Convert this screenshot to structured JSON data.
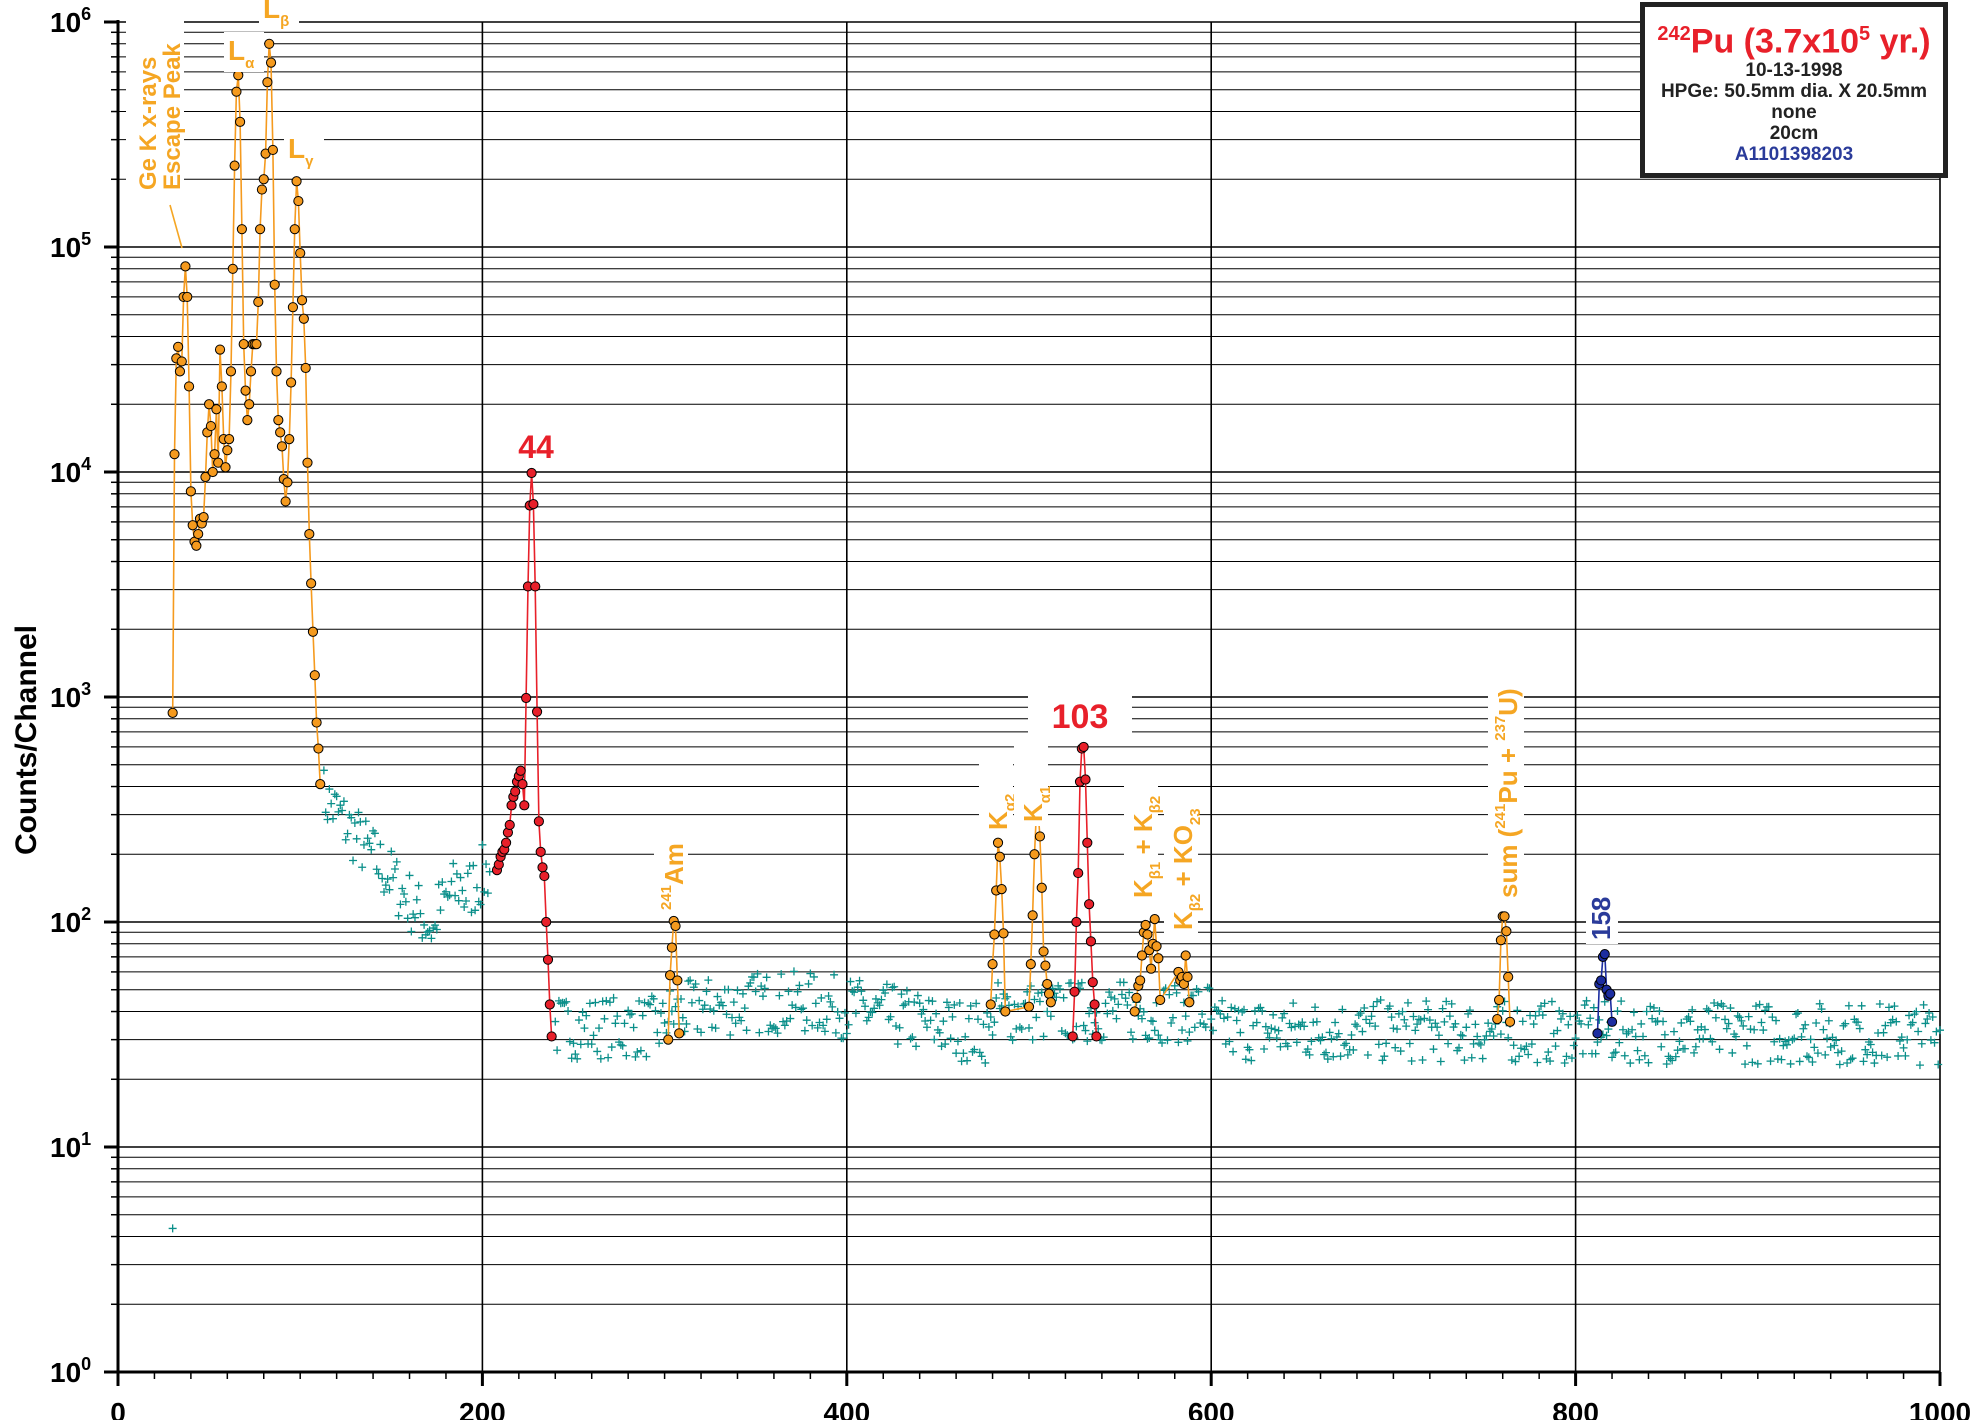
{
  "info_box": {
    "title_sup": "242",
    "title_element": "Pu",
    "title_rest_pre": " (3.7x10",
    "title_exp": "5",
    "title_rest_post": " yr.)",
    "date": "10-13-1998",
    "detector": "HPGe: 50.5mm dia. X 20.5mm",
    "absorber": "none",
    "distance": "20cm",
    "spectrum_id": "A1101398203"
  },
  "chart_data": {
    "type": "scatter",
    "title": "",
    "xlabel": "",
    "ylabel": "Counts/Channel",
    "xlim": [
      0,
      1000
    ],
    "ylim": [
      1,
      1000000
    ],
    "yscale": "log",
    "grid": true,
    "x_ticks": [
      "0",
      "200",
      "400",
      "600",
      "800",
      "1000"
    ],
    "y_ticks": [
      {
        "base": "10",
        "exp": "0"
      },
      {
        "base": "10",
        "exp": "1"
      },
      {
        "base": "10",
        "exp": "2"
      },
      {
        "base": "10",
        "exp": "3"
      },
      {
        "base": "10",
        "exp": "4"
      },
      {
        "base": "10",
        "exp": "5"
      },
      {
        "base": "10",
        "exp": "6"
      }
    ],
    "colors": {
      "background": "#0a8f8a",
      "xray": "#f59a1e",
      "peak": "#e8202a",
      "peak_dark": "#1c2da0",
      "text_xray": "#f5a623",
      "text_peak": "#e8202a",
      "text_blue": "#2a3b9a"
    },
    "series": [
      {
        "role": "xray-lines",
        "color": "#f59a1e",
        "points": [
          [
            30,
            850
          ],
          [
            31,
            12000
          ],
          [
            32,
            32000
          ],
          [
            33,
            36000
          ],
          [
            34,
            28000
          ],
          [
            35,
            31000
          ],
          [
            36,
            60000
          ],
          [
            37,
            82000
          ],
          [
            38,
            60000
          ],
          [
            39,
            24000
          ],
          [
            40,
            8200
          ],
          [
            41,
            5800
          ],
          [
            42,
            4900
          ],
          [
            43,
            4700
          ],
          [
            44,
            5300
          ],
          [
            45,
            6200
          ],
          [
            46,
            5900
          ],
          [
            47,
            6300
          ],
          [
            48,
            9500
          ],
          [
            49,
            15000
          ],
          [
            50,
            20000
          ],
          [
            51,
            16000
          ],
          [
            52,
            10000
          ],
          [
            53,
            12000
          ],
          [
            54,
            19000
          ],
          [
            55,
            11000
          ],
          [
            56,
            35000
          ],
          [
            57,
            24000
          ],
          [
            58,
            14000
          ],
          [
            59,
            10500
          ],
          [
            60,
            12500
          ],
          [
            61,
            14000
          ],
          [
            62,
            28000
          ],
          [
            63,
            80000
          ],
          [
            64,
            230000
          ],
          [
            65,
            490000
          ],
          [
            66,
            580000
          ],
          [
            67,
            360000
          ],
          [
            68,
            120000
          ],
          [
            69,
            37000
          ],
          [
            70,
            23000
          ],
          [
            71,
            17000
          ],
          [
            72,
            20000
          ],
          [
            73,
            28000
          ],
          [
            74,
            37000
          ],
          [
            75,
            37000
          ],
          [
            76,
            37000
          ],
          [
            77,
            57000
          ],
          [
            78,
            120000
          ],
          [
            79,
            180000
          ],
          [
            80,
            200000
          ],
          [
            81,
            260000
          ],
          [
            82,
            540000
          ],
          [
            83,
            800000
          ],
          [
            84,
            660000
          ],
          [
            85,
            270000
          ],
          [
            86,
            68000
          ],
          [
            87,
            28000
          ],
          [
            88,
            17000
          ],
          [
            89,
            15000
          ],
          [
            90,
            13000
          ],
          [
            91,
            9300
          ],
          [
            92,
            7400
          ],
          [
            93,
            9000
          ],
          [
            94,
            14000
          ],
          [
            95,
            25000
          ],
          [
            96,
            54000
          ],
          [
            97,
            120000
          ],
          [
            98,
            196000
          ],
          [
            99,
            160000
          ],
          [
            100,
            94000
          ],
          [
            101,
            58000
          ],
          [
            102,
            48000
          ],
          [
            103,
            29000
          ],
          [
            104,
            11000
          ],
          [
            105,
            5300
          ],
          [
            106,
            3200
          ],
          [
            107,
            1950
          ],
          [
            108,
            1250
          ],
          [
            109,
            770
          ],
          [
            110,
            590
          ],
          [
            111,
            410
          ]
        ]
      },
      {
        "role": "peak-44",
        "color": "#e8202a",
        "points": [
          [
            208,
            170
          ],
          [
            209,
            180
          ],
          [
            210,
            195
          ],
          [
            211,
            205
          ],
          [
            212,
            210
          ],
          [
            213,
            225
          ],
          [
            214,
            250
          ],
          [
            215,
            270
          ],
          [
            216,
            330
          ],
          [
            217,
            360
          ],
          [
            218,
            380
          ],
          [
            219,
            420
          ],
          [
            220,
            445
          ],
          [
            221,
            470
          ],
          [
            222,
            410
          ],
          [
            223,
            330
          ],
          [
            224,
            990
          ],
          [
            225,
            3100
          ],
          [
            226,
            7100
          ],
          [
            227,
            9900
          ],
          [
            228,
            7200
          ],
          [
            229,
            3100
          ],
          [
            230,
            860
          ],
          [
            231,
            280
          ],
          [
            232,
            205
          ],
          [
            233,
            175
          ],
          [
            234,
            160
          ],
          [
            235,
            100
          ],
          [
            236,
            68
          ],
          [
            237,
            43
          ],
          [
            238,
            31
          ]
        ]
      },
      {
        "role": "am241",
        "color": "#f59a1e",
        "points": [
          [
            302,
            30
          ],
          [
            303,
            58
          ],
          [
            304,
            77
          ],
          [
            305,
            101
          ],
          [
            306,
            96
          ],
          [
            307,
            55
          ],
          [
            308,
            32
          ]
        ]
      },
      {
        "role": "k-alpha",
        "color": "#f59a1e",
        "points": [
          [
            479,
            43
          ],
          [
            480,
            65
          ],
          [
            481,
            88
          ],
          [
            482,
            138
          ],
          [
            483,
            225
          ],
          [
            484,
            195
          ],
          [
            485,
            140
          ],
          [
            486,
            89
          ],
          [
            487,
            40
          ],
          [
            500,
            42
          ],
          [
            501,
            65
          ],
          [
            502,
            107
          ],
          [
            503,
            200
          ],
          [
            504,
            300
          ],
          [
            505,
            310
          ],
          [
            506,
            240
          ],
          [
            507,
            142
          ],
          [
            508,
            74
          ],
          [
            509,
            64
          ],
          [
            510,
            53
          ],
          [
            511,
            48
          ],
          [
            512,
            44
          ]
        ]
      },
      {
        "role": "peak-103",
        "color": "#e8202a",
        "points": [
          [
            524,
            31
          ],
          [
            525,
            49
          ],
          [
            526,
            100
          ],
          [
            527,
            165
          ],
          [
            528,
            420
          ],
          [
            529,
            590
          ],
          [
            530,
            600
          ],
          [
            531,
            430
          ],
          [
            532,
            225
          ],
          [
            533,
            120
          ],
          [
            534,
            82
          ],
          [
            535,
            54
          ],
          [
            536,
            43
          ],
          [
            537,
            31
          ]
        ]
      },
      {
        "role": "k-beta",
        "color": "#f59a1e",
        "points": [
          [
            558,
            40
          ],
          [
            559,
            46
          ],
          [
            560,
            52
          ],
          [
            561,
            55
          ],
          [
            562,
            71
          ],
          [
            563,
            90
          ],
          [
            564,
            97
          ],
          [
            565,
            88
          ],
          [
            566,
            75
          ],
          [
            567,
            62
          ],
          [
            568,
            80
          ],
          [
            569,
            103
          ],
          [
            570,
            78
          ],
          [
            571,
            69
          ],
          [
            572,
            45
          ],
          [
            582,
            60
          ],
          [
            583,
            55
          ],
          [
            584,
            57
          ],
          [
            585,
            53
          ],
          [
            586,
            71
          ],
          [
            587,
            57
          ],
          [
            588,
            44
          ]
        ]
      },
      {
        "role": "sum-peak",
        "color": "#f59a1e",
        "points": [
          [
            757,
            37
          ],
          [
            758,
            45
          ],
          [
            759,
            83
          ],
          [
            760,
            106
          ],
          [
            761,
            106
          ],
          [
            762,
            91
          ],
          [
            763,
            57
          ],
          [
            764,
            36
          ]
        ]
      },
      {
        "role": "peak-158",
        "color": "#1c2da0",
        "points": [
          [
            812,
            32
          ],
          [
            813,
            53
          ],
          [
            814,
            55
          ],
          [
            815,
            70
          ],
          [
            816,
            72
          ],
          [
            817,
            50
          ],
          [
            818,
            47
          ],
          [
            819,
            48
          ],
          [
            820,
            36
          ]
        ]
      }
    ],
    "annotations": [
      {
        "id": "escape-peak",
        "lines": [
          "Ge K x-rays",
          "Escape Peak"
        ],
        "color": "#f5a623"
      },
      {
        "id": "l-alpha",
        "base": "L",
        "sub": "α",
        "color": "#f5a623"
      },
      {
        "id": "l-beta",
        "base": "L",
        "sub": "β",
        "color": "#f5a623"
      },
      {
        "id": "l-gamma",
        "base": "L",
        "sub": "γ",
        "color": "#f5a623"
      },
      {
        "id": "peak-44",
        "text": "44",
        "color": "#e8202a"
      },
      {
        "id": "am241",
        "sup": "241",
        "text": "Am",
        "color": "#f5a623"
      },
      {
        "id": "k-alpha2",
        "base": "K",
        "sub": "α2",
        "color": "#f5a623"
      },
      {
        "id": "k-alpha1",
        "base": "K",
        "sub": "α1",
        "color": "#f5a623"
      },
      {
        "id": "peak-103",
        "text": "103",
        "color": "#e8202a"
      },
      {
        "id": "k-beta1",
        "parts": [
          "K",
          "β1",
          " + K",
          "β2"
        ],
        "color": "#f5a623"
      },
      {
        "id": "k-beta2",
        "parts": [
          "K",
          "β2",
          " + KO",
          "23"
        ],
        "color": "#f5a623"
      },
      {
        "id": "sum-peak",
        "parts": [
          "sum (",
          "241",
          "Pu + ",
          "237",
          "U)"
        ],
        "color": "#f5a623"
      },
      {
        "id": "peak-158",
        "text": "158",
        "color": "#2a3b9a"
      }
    ]
  }
}
